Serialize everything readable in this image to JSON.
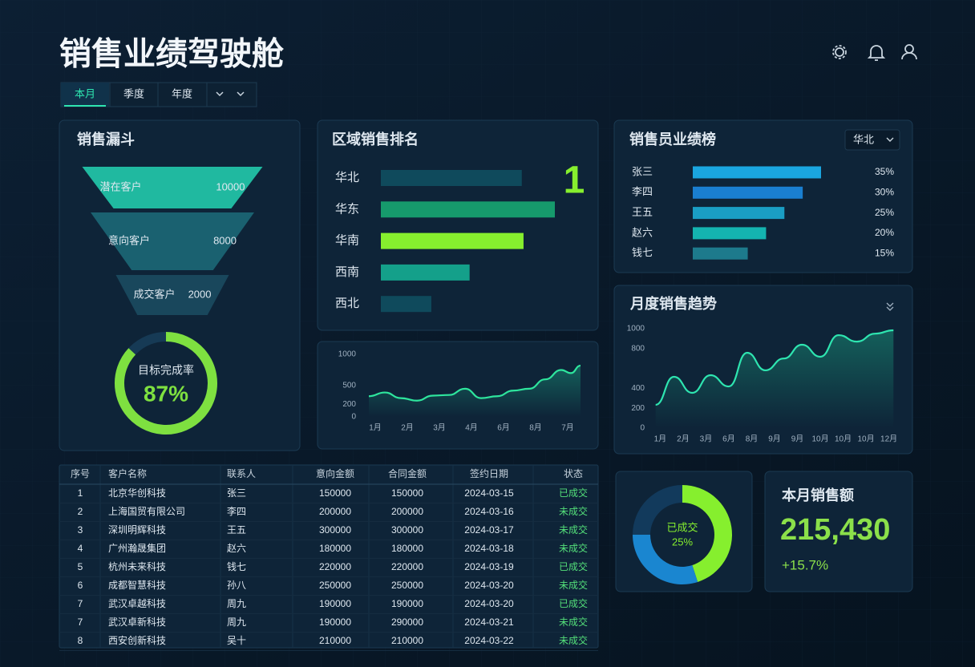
{
  "header": {
    "title": "销售业绩驾驶舱",
    "tabs": [
      "本月",
      "季度",
      "年度"
    ]
  },
  "chart_data": [
    {
      "type": "funnel",
      "title": "销售漏斗",
      "categories": [
        "潜在客户",
        "意向客户",
        "成交客户"
      ],
      "values": [
        10000,
        8000,
        2000
      ],
      "colors": [
        "#22c7a9",
        "#1b6775",
        "#1a4b60"
      ]
    },
    {
      "type": "gauge",
      "title": "目标完成率",
      "values": [
        87
      ],
      "value_labels": [
        "87%"
      ],
      "color": "#7ee040"
    },
    {
      "type": "hbar",
      "title": "区域销售排名",
      "categories": [
        "华北",
        "华东",
        "华南",
        "西南",
        "西北"
      ],
      "values": [
        81,
        100,
        82,
        51,
        29
      ],
      "colors": [
        "#0f4a5c",
        "#169a6c",
        "#86ef2e",
        "#14a08a",
        "#0f4a5c"
      ],
      "annotation": "1"
    },
    {
      "type": "line",
      "x": [
        0.8,
        1.3,
        1.8,
        2.3,
        2.8,
        3.3,
        3.8,
        4.3,
        4.8,
        5.3,
        5.8,
        6.3,
        6.8,
        7.1,
        7.4
      ],
      "values": [
        330,
        390,
        300,
        260,
        340,
        350,
        450,
        300,
        330,
        420,
        450,
        600,
        750,
        700,
        820
      ],
      "color": "#2ee59d",
      "xlim": [
        0.6,
        7.6
      ],
      "xticks": [
        {
          "value": 1,
          "label": "1月"
        },
        {
          "value": 2,
          "label": "2月"
        },
        {
          "value": 3,
          "label": "3月"
        },
        {
          "value": 4,
          "label": "4月"
        },
        {
          "value": 5,
          "label": "6月"
        },
        {
          "value": 6,
          "label": "8月"
        },
        {
          "value": 7,
          "label": "7月"
        }
      ],
      "ylim": [
        0,
        1000
      ],
      "yticks": [
        0,
        200,
        500,
        1000
      ]
    },
    {
      "type": "hbar",
      "title": "销售员业绩榜",
      "filter": "华北",
      "categories": [
        "张三",
        "李四",
        "王五",
        "赵六",
        "钱七"
      ],
      "values": [
        35,
        30,
        25,
        20,
        15
      ],
      "value_labels": [
        "35%",
        "30%",
        "25%",
        "20%",
        "15%"
      ],
      "colors": [
        "#1aa6e0",
        "#1a7fd0",
        "#1a9ec4",
        "#14b4b0",
        "#1d7a8c"
      ]
    },
    {
      "type": "line",
      "title": "月度销售趋势",
      "x": [
        0.8,
        1.6,
        2.4,
        3.2,
        4.0,
        4.8,
        5.6,
        6.4,
        7.2,
        8.0,
        8.8,
        9.6,
        10.4,
        11.2
      ],
      "values": [
        234,
        516,
        355,
        532,
        419,
        758,
        581,
        700,
        839,
        718,
        935,
        870,
        950,
        984
      ],
      "color": "#2ee5b0",
      "xlim": [
        0.6,
        11.4
      ],
      "xticks": [
        {
          "value": 1,
          "label": "1月"
        },
        {
          "value": 2,
          "label": "2月"
        },
        {
          "value": 3,
          "label": "3月"
        },
        {
          "value": 4,
          "label": "6月"
        },
        {
          "value": 5,
          "label": "8月"
        },
        {
          "value": 6,
          "label": "9月"
        },
        {
          "value": 7,
          "label": "9月"
        },
        {
          "value": 8,
          "label": "10月"
        },
        {
          "value": 9,
          "label": "10月"
        },
        {
          "value": 10,
          "label": "10月"
        },
        {
          "value": 11,
          "label": "12月"
        }
      ],
      "ylim": [
        0,
        1000
      ],
      "yticks": [
        0,
        200,
        400,
        800,
        1000
      ]
    },
    {
      "type": "donut",
      "values": [
        45,
        30,
        25
      ],
      "colors": [
        "#86ef2e",
        "#1a86d0",
        "#123a5c"
      ],
      "center_label": "已成交",
      "center_value": "25%"
    }
  ],
  "kpi": {
    "title": "本月销售额",
    "value": "215,430",
    "change": "+15.7%"
  },
  "table": {
    "columns": [
      "序号",
      "客户名称",
      "联系人",
      "意向金额",
      "合同金额",
      "签约日期",
      "状态"
    ],
    "rows": [
      [
        1,
        "北京华创科技",
        "张三",
        150000,
        150000,
        "2024-03-15",
        "已成交"
      ],
      [
        2,
        "上海国贸有限公司",
        "李四",
        200000,
        200000,
        "2024-03-16",
        "未成交"
      ],
      [
        3,
        "深圳明辉科技",
        "王五",
        300000,
        300000,
        "2024-03-17",
        "未成交"
      ],
      [
        4,
        "广州瀚晟集团",
        "赵六",
        180000,
        180000,
        "2024-03-18",
        "未成交"
      ],
      [
        5,
        "杭州未来科技",
        "钱七",
        220000,
        220000,
        "2024-03-19",
        "已成交"
      ],
      [
        6,
        "成都智慧科技",
        "孙八",
        250000,
        250000,
        "2024-03-20",
        "未成交"
      ],
      [
        7,
        "武汉卓越科技",
        "周九",
        190000,
        190000,
        "2024-03-20",
        "已成交"
      ],
      [
        7,
        "武汉卓新科技",
        "周九",
        190000,
        290000,
        "2024-03-21",
        "未成交"
      ],
      [
        8,
        "西安创新科技",
        "吴十",
        210000,
        210000,
        "2024-03-22",
        "未成交"
      ]
    ]
  }
}
